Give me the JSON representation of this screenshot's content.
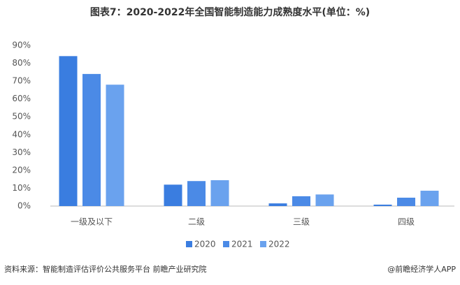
{
  "chart_data": {
    "type": "bar",
    "title": "图表7：2020-2022年全国智能制造能力成熟度水平(单位：%)",
    "categories": [
      "一级及以下",
      "二级",
      "三级",
      "四级"
    ],
    "series": [
      {
        "name": "2020",
        "color": "#3a7de0",
        "values": [
          84,
          12,
          1.5,
          0.8
        ]
      },
      {
        "name": "2021",
        "color": "#4b8ae6",
        "values": [
          74,
          14,
          5.5,
          4.7
        ]
      },
      {
        "name": "2022",
        "color": "#6aa2ee",
        "values": [
          68,
          14.5,
          6.5,
          8.6
        ]
      }
    ],
    "ylim": [
      0,
      90
    ],
    "yticks": [
      {
        "value": 0,
        "label": "0%"
      },
      {
        "value": 10,
        "label": "10%"
      },
      {
        "value": 20,
        "label": "20%"
      },
      {
        "value": 30,
        "label": "30%"
      },
      {
        "value": 40,
        "label": "40%"
      },
      {
        "value": 50,
        "label": "50%"
      },
      {
        "value": 60,
        "label": "60%"
      },
      {
        "value": 70,
        "label": "70%"
      },
      {
        "value": 80,
        "label": "80%"
      },
      {
        "value": 90,
        "label": "90%"
      }
    ],
    "grid": false,
    "source": "资料来源：智能制造评估评价公共服务平台 前瞻产业研究院",
    "credit": "@前瞻经济学人APP"
  }
}
